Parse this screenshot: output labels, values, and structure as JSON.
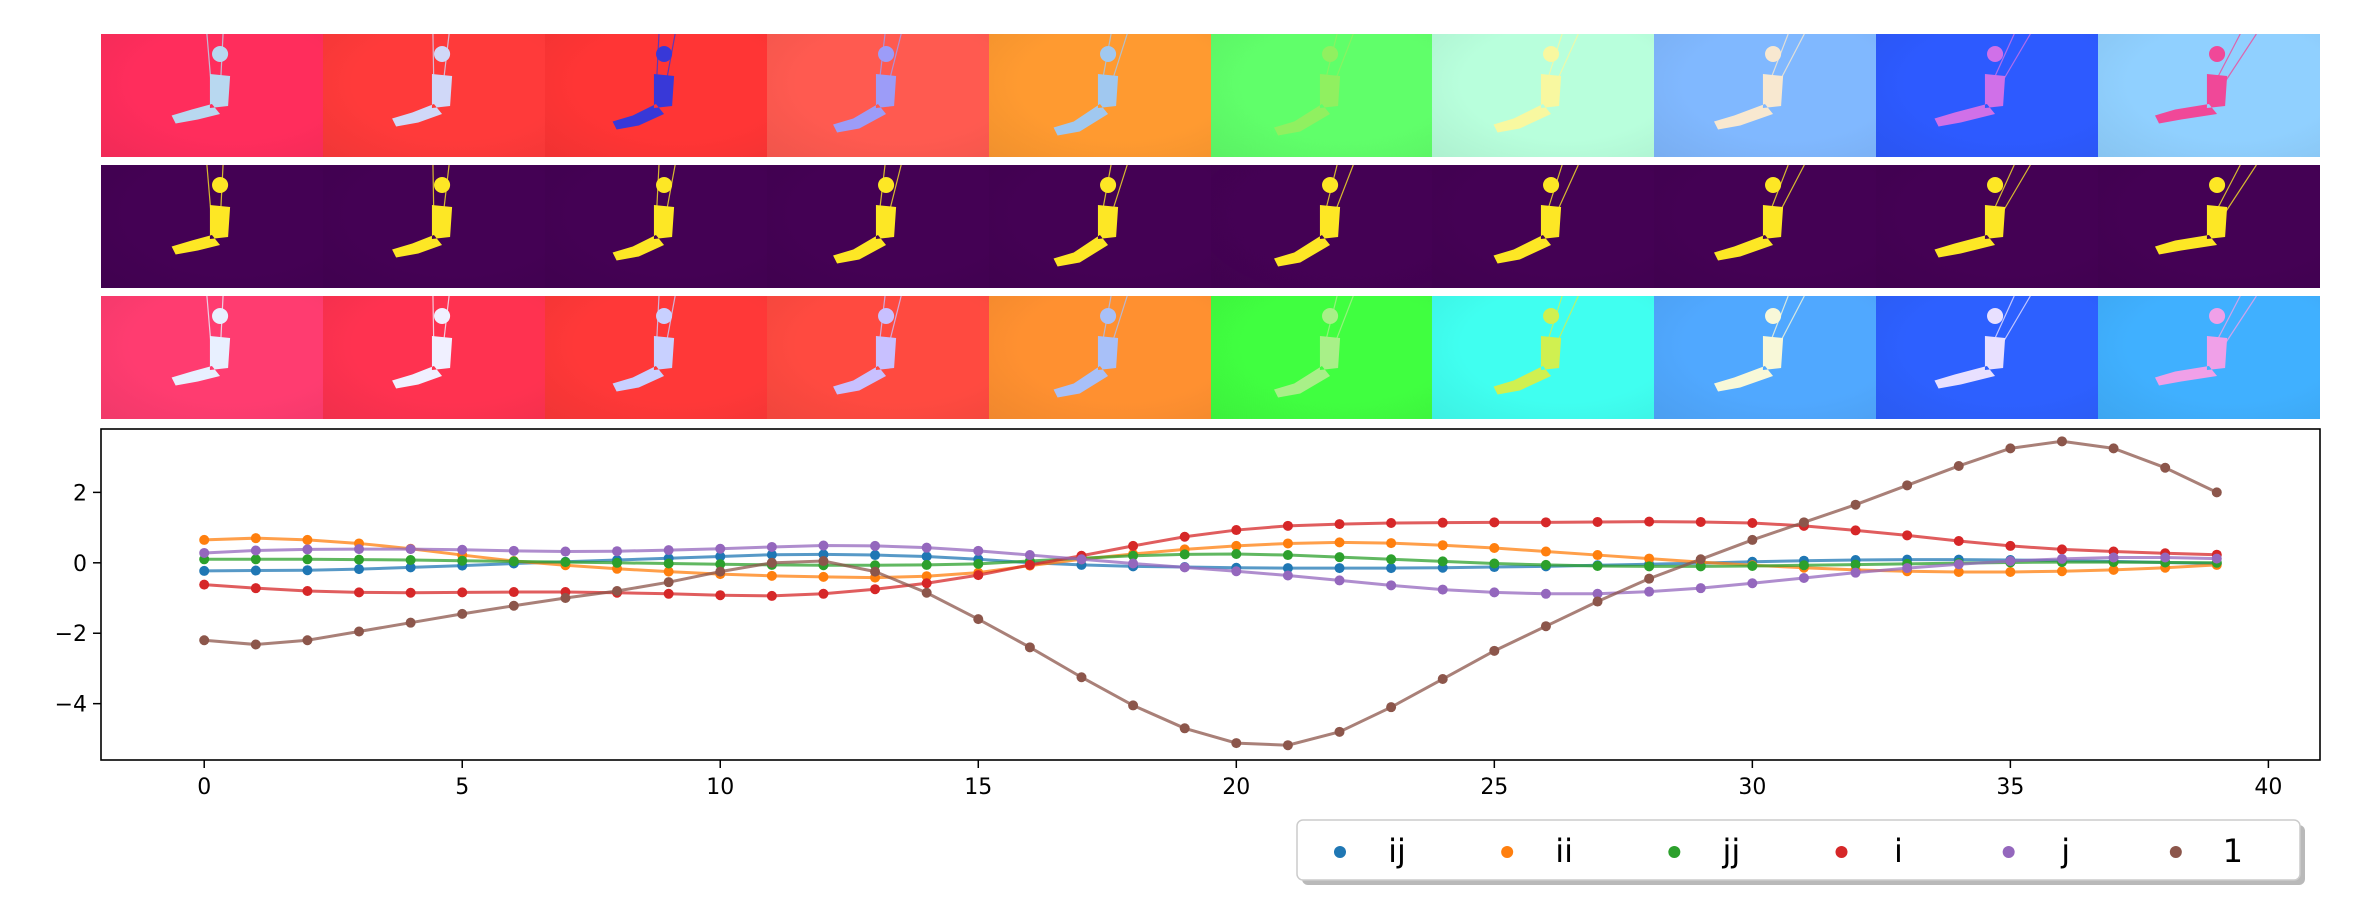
{
  "image_strips": [
    {
      "name": "rgb-frames",
      "frames": [
        {
          "bg": "#ff2d5c",
          "fg": "#b8d8f0"
        },
        {
          "bg": "#ff3a3a",
          "fg": "#d0d8f8"
        },
        {
          "bg": "#ff3535",
          "fg": "#3838d8"
        },
        {
          "bg": "#ff5a50",
          "fg": "#9c9cf8"
        },
        {
          "bg": "#ff9a30",
          "fg": "#a0c8f0"
        },
        {
          "bg": "#60ff6a",
          "fg": "#90f060"
        },
        {
          "bg": "#b8ffdc",
          "fg": "#f8f8a0"
        },
        {
          "bg": "#80b8ff",
          "fg": "#f8e8d0"
        },
        {
          "bg": "#2d5aff",
          "fg": "#d070e8"
        },
        {
          "bg": "#90d0ff",
          "fg": "#f04898"
        }
      ]
    },
    {
      "name": "mask-frames",
      "frames": [
        {
          "bg": "#440154",
          "fg": "#fde725"
        },
        {
          "bg": "#440154",
          "fg": "#fde725"
        },
        {
          "bg": "#440154",
          "fg": "#fde725"
        },
        {
          "bg": "#440154",
          "fg": "#fde725"
        },
        {
          "bg": "#440154",
          "fg": "#fde725"
        },
        {
          "bg": "#440154",
          "fg": "#fde725"
        },
        {
          "bg": "#440154",
          "fg": "#fde725"
        },
        {
          "bg": "#440154",
          "fg": "#fde725"
        },
        {
          "bg": "#440154",
          "fg": "#fde725"
        },
        {
          "bg": "#440154",
          "fg": "#fde725"
        }
      ]
    },
    {
      "name": "reconstruction-frames",
      "frames": [
        {
          "bg": "#ff3c70",
          "fg": "#e8f0ff"
        },
        {
          "bg": "#ff3250",
          "fg": "#f0f0ff"
        },
        {
          "bg": "#ff3838",
          "fg": "#c8d0ff"
        },
        {
          "bg": "#ff4a40",
          "fg": "#c8c0ff"
        },
        {
          "bg": "#ff9030",
          "fg": "#a8c0f8"
        },
        {
          "bg": "#40ff40",
          "fg": "#a8f088"
        },
        {
          "bg": "#40fff0",
          "fg": "#d0f050"
        },
        {
          "bg": "#50a8ff",
          "fg": "#f8f8d8"
        },
        {
          "bg": "#2d60ff",
          "fg": "#e8e0ff"
        },
        {
          "bg": "#40b0ff",
          "fg": "#f0a0e8"
        }
      ]
    }
  ],
  "chart_data": {
    "type": "line",
    "title": "",
    "xlabel": "",
    "ylabel": "",
    "xlim": [
      -2,
      41
    ],
    "ylim": [
      -5.6,
      3.8
    ],
    "xticks": [
      0,
      5,
      10,
      15,
      20,
      25,
      30,
      35,
      40
    ],
    "xtick_labels": [
      "0",
      "5",
      "10",
      "15",
      "20",
      "25",
      "30",
      "35",
      "40"
    ],
    "yticks": [
      -4,
      -2,
      0,
      2
    ],
    "ytick_labels": [
      "−4",
      "−2",
      "0",
      "2"
    ],
    "x": [
      0,
      1,
      2,
      3,
      4,
      5,
      6,
      7,
      8,
      9,
      10,
      11,
      12,
      13,
      14,
      15,
      16,
      17,
      18,
      19,
      20,
      21,
      22,
      23,
      24,
      25,
      26,
      27,
      28,
      29,
      30,
      31,
      32,
      33,
      34,
      35,
      36,
      37,
      38,
      39
    ],
    "grid": false,
    "legend_position": "bottom-right, outside below axes",
    "series": [
      {
        "name": "ij",
        "color": "#1f77b4",
        "values": [
          -0.23,
          -0.22,
          -0.21,
          -0.18,
          -0.13,
          -0.08,
          -0.02,
          0.03,
          0.08,
          0.13,
          0.18,
          0.23,
          0.24,
          0.22,
          0.18,
          0.1,
          0.0,
          -0.06,
          -0.1,
          -0.12,
          -0.14,
          -0.15,
          -0.15,
          -0.15,
          -0.14,
          -0.12,
          -0.1,
          -0.07,
          -0.04,
          -0.01,
          0.03,
          0.06,
          0.08,
          0.09,
          0.09,
          0.08,
          0.06,
          0.04,
          0.01,
          -0.02
        ]
      },
      {
        "name": "ii",
        "color": "#ff7f0e",
        "values": [
          0.65,
          0.7,
          0.65,
          0.55,
          0.4,
          0.22,
          0.05,
          -0.07,
          -0.17,
          -0.25,
          -0.32,
          -0.37,
          -0.4,
          -0.42,
          -0.38,
          -0.28,
          -0.08,
          0.1,
          0.25,
          0.38,
          0.48,
          0.55,
          0.58,
          0.56,
          0.5,
          0.42,
          0.32,
          0.22,
          0.12,
          0.02,
          -0.07,
          -0.14,
          -0.2,
          -0.24,
          -0.26,
          -0.26,
          -0.24,
          -0.2,
          -0.14,
          -0.06
        ]
      },
      {
        "name": "jj",
        "color": "#2ca02c",
        "values": [
          0.1,
          0.1,
          0.1,
          0.09,
          0.08,
          0.06,
          0.04,
          0.02,
          0.0,
          -0.02,
          -0.04,
          -0.06,
          -0.07,
          -0.07,
          -0.06,
          -0.03,
          0.05,
          0.13,
          0.2,
          0.24,
          0.25,
          0.22,
          0.16,
          0.1,
          0.04,
          -0.02,
          -0.06,
          -0.09,
          -0.1,
          -0.1,
          -0.09,
          -0.07,
          -0.05,
          -0.03,
          -0.01,
          0.01,
          0.02,
          0.02,
          0.01,
          0.0
        ]
      },
      {
        "name": "i",
        "color": "#d62728",
        "values": [
          -0.62,
          -0.72,
          -0.8,
          -0.84,
          -0.85,
          -0.84,
          -0.83,
          -0.83,
          -0.85,
          -0.88,
          -0.92,
          -0.94,
          -0.88,
          -0.75,
          -0.58,
          -0.35,
          -0.06,
          0.2,
          0.48,
          0.74,
          0.93,
          1.05,
          1.1,
          1.13,
          1.14,
          1.15,
          1.15,
          1.16,
          1.17,
          1.16,
          1.13,
          1.05,
          0.92,
          0.78,
          0.62,
          0.48,
          0.38,
          0.32,
          0.27,
          0.23
        ]
      },
      {
        "name": "j",
        "color": "#9467bd",
        "values": [
          0.28,
          0.35,
          0.38,
          0.39,
          0.39,
          0.37,
          0.34,
          0.32,
          0.33,
          0.36,
          0.4,
          0.45,
          0.49,
          0.48,
          0.43,
          0.34,
          0.22,
          0.1,
          -0.02,
          -0.13,
          -0.24,
          -0.36,
          -0.5,
          -0.64,
          -0.76,
          -0.84,
          -0.88,
          -0.88,
          -0.82,
          -0.72,
          -0.58,
          -0.43,
          -0.28,
          -0.15,
          -0.04,
          0.05,
          0.11,
          0.15,
          0.15,
          0.12
        ]
      },
      {
        "name": "1",
        "color": "#8c564b",
        "values": [
          -2.2,
          -2.32,
          -2.2,
          -1.95,
          -1.7,
          -1.45,
          -1.22,
          -1.0,
          -0.8,
          -0.55,
          -0.25,
          0.0,
          0.05,
          -0.25,
          -0.85,
          -1.6,
          -2.4,
          -3.25,
          -4.05,
          -4.7,
          -5.12,
          -5.18,
          -4.8,
          -4.1,
          -3.3,
          -2.5,
          -1.8,
          -1.1,
          -0.45,
          0.1,
          0.65,
          1.15,
          1.65,
          2.2,
          2.75,
          3.25,
          3.45,
          3.25,
          2.7,
          2.0
        ]
      }
    ]
  }
}
